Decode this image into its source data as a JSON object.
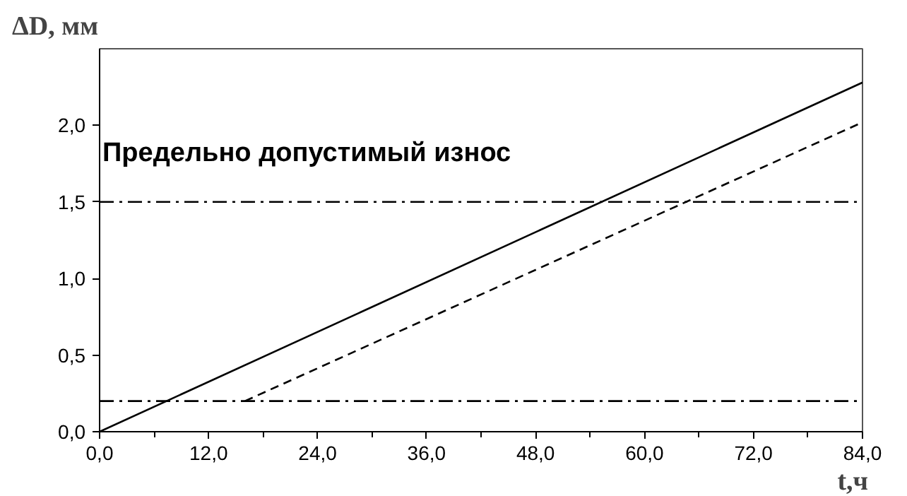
{
  "chart_data": {
    "type": "line",
    "xlabel": "t,ч",
    "ylabel": "ΔD, мм",
    "xlim": [
      0,
      84
    ],
    "ylim": [
      0,
      2.5
    ],
    "xticks": [
      {
        "value": 0,
        "label": "0,0"
      },
      {
        "value": 12,
        "label": "12,0"
      },
      {
        "value": 24,
        "label": "24,0"
      },
      {
        "value": 36,
        "label": "36,0"
      },
      {
        "value": 48,
        "label": "48,0"
      },
      {
        "value": 60,
        "label": "60,0"
      },
      {
        "value": 72,
        "label": "72,0"
      },
      {
        "value": 84,
        "label": "84,0"
      }
    ],
    "yticks": [
      {
        "value": 0,
        "label": "0,0"
      },
      {
        "value": 0.5,
        "label": "0,5"
      },
      {
        "value": 1,
        "label": "1,0"
      },
      {
        "value": 1.5,
        "label": "1,5"
      },
      {
        "value": 2,
        "label": "2,0"
      }
    ],
    "series": [
      {
        "color": "#000000",
        "line_style": "solid",
        "x": [
          0,
          84
        ],
        "values": [
          0,
          2.28
        ]
      },
      {
        "color": "#000000",
        "line_style": "dashed",
        "x": [
          16,
          84
        ],
        "values": [
          0.2,
          2.02
        ]
      }
    ],
    "ref_lines": [
      {
        "axis": "y",
        "value": 1.5,
        "label": "Предельно допустимый износ",
        "color": "#000000",
        "line_style": "dashdot"
      },
      {
        "axis": "y",
        "value": 0.2,
        "label": null,
        "color": "#000000",
        "line_style": "dashdot"
      }
    ],
    "grid": false,
    "marker": "none"
  }
}
